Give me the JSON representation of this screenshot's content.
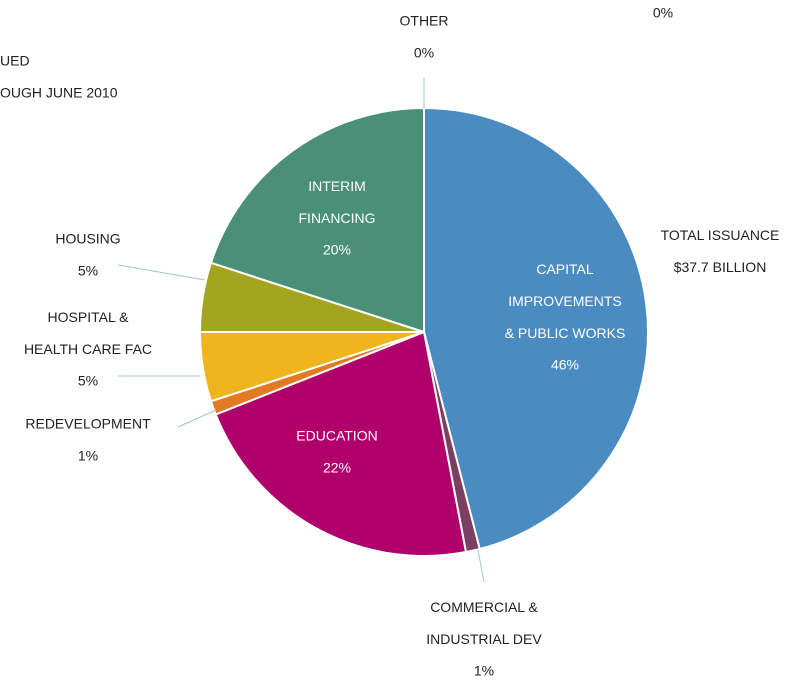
{
  "chart_data": {
    "type": "pie",
    "title": [
      "UED",
      "OUGH JUNE 2010"
    ],
    "categories": [
      "CAPITAL\nIMPROVEMENTS\n& PUBLIC WORKS",
      "COMMERCIAL &\nINDUSTRIAL DEV",
      "EDUCATION",
      "REDEVELOPMENT",
      "HOSPITAL &\nHEALTH CARE FAC",
      "HOUSING",
      "INTERIM\nFINANCING",
      "OTHER"
    ],
    "values": [
      46,
      1,
      22,
      1,
      5,
      5,
      20,
      0
    ],
    "value_labels": [
      "46%",
      "1%",
      "22%",
      "1%",
      "5%",
      "5%",
      "20%",
      "0%"
    ],
    "colors": [
      "#4a8bc2",
      "#7b3f63",
      "#b0006b",
      "#e07b22",
      "#f0b41c",
      "#a2a51d",
      "#4a8f77",
      "#888888"
    ],
    "annotations": [
      "TOTAL ISSUANCE\n$37.7 BILLION",
      "0%"
    ]
  }
}
